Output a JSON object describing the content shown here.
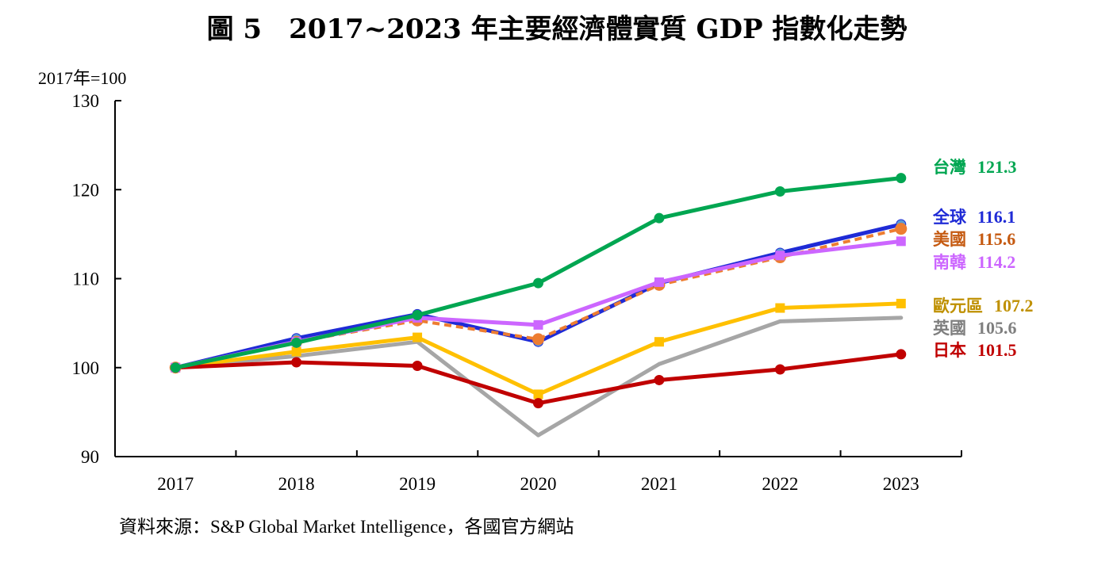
{
  "chart_data": {
    "type": "line",
    "title": "圖 5　2017~2023 年主要經濟體實質 GDP 指數化走勢",
    "ylabel": "2017年=100",
    "xlabel": "",
    "categories": [
      "2017",
      "2018",
      "2019",
      "2020",
      "2021",
      "2022",
      "2023"
    ],
    "ylim": [
      90,
      130
    ],
    "yticks": [
      90,
      100,
      110,
      120,
      130
    ],
    "grid": false,
    "legend": "end-labels-right",
    "series": [
      {
        "name": "全球",
        "end_label": "116.1",
        "color": "#1f2bd6",
        "marker": "circle",
        "marker_color": "#5b9bd5",
        "dashed": false,
        "values": [
          100,
          103.3,
          106.0,
          102.9,
          109.5,
          112.9,
          116.1
        ]
      },
      {
        "name": "英國",
        "end_label": "105.6",
        "color": "#a6a6a6",
        "marker": "none",
        "marker_color": "#a6a6a6",
        "dashed": false,
        "values": [
          100,
          101.3,
          102.9,
          92.4,
          100.4,
          105.2,
          105.6
        ]
      },
      {
        "name": "歐元區",
        "end_label": "107.2",
        "color": "#ffc000",
        "marker": "square",
        "marker_color": "#ffc000",
        "dashed": false,
        "values": [
          100,
          101.8,
          103.4,
          97.0,
          102.9,
          106.7,
          107.2
        ]
      },
      {
        "name": "日本",
        "end_label": "101.5",
        "color": "#c00000",
        "marker": "circle",
        "marker_color": "#c00000",
        "dashed": false,
        "values": [
          100,
          100.6,
          100.2,
          96.0,
          98.6,
          99.8,
          101.5
        ]
      },
      {
        "name": "美國",
        "end_label": "115.6",
        "color": "#ed7d31",
        "marker": "circle-large",
        "marker_color": "#ed7d31",
        "dashed": true,
        "values": [
          100,
          102.9,
          105.3,
          103.2,
          109.3,
          112.4,
          115.6
        ]
      },
      {
        "name": "南韓",
        "end_label": "114.2",
        "color": "#cc66ff",
        "marker": "square",
        "marker_color": "#cc66ff",
        "dashed": false,
        "values": [
          100,
          102.9,
          105.6,
          104.8,
          109.6,
          112.6,
          114.2
        ]
      },
      {
        "name": "台灣",
        "end_label": "121.3",
        "color": "#00a651",
        "marker": "circle",
        "marker_color": "#00a651",
        "dashed": false,
        "values": [
          100,
          102.8,
          105.9,
          109.5,
          116.8,
          119.8,
          121.3
        ]
      }
    ],
    "end_labels": [
      {
        "name": "台灣",
        "value": "121.3",
        "color": "#00a651"
      },
      {
        "name": "全球",
        "value": "116.1",
        "color": "#1f2bd6"
      },
      {
        "name": "美國",
        "value": "115.6",
        "color": "#c55a11"
      },
      {
        "name": "南韓",
        "value": "114.2",
        "color": "#cc66ff"
      },
      {
        "name": "歐元區",
        "value": "107.2",
        "color": "#bf9000"
      },
      {
        "name": "英國",
        "value": "105.6",
        "color": "#7f7f7f"
      },
      {
        "name": "日本",
        "value": "101.5",
        "color": "#c00000"
      }
    ]
  },
  "source": "資料來源：S&P Global Market Intelligence，各國官方網站"
}
